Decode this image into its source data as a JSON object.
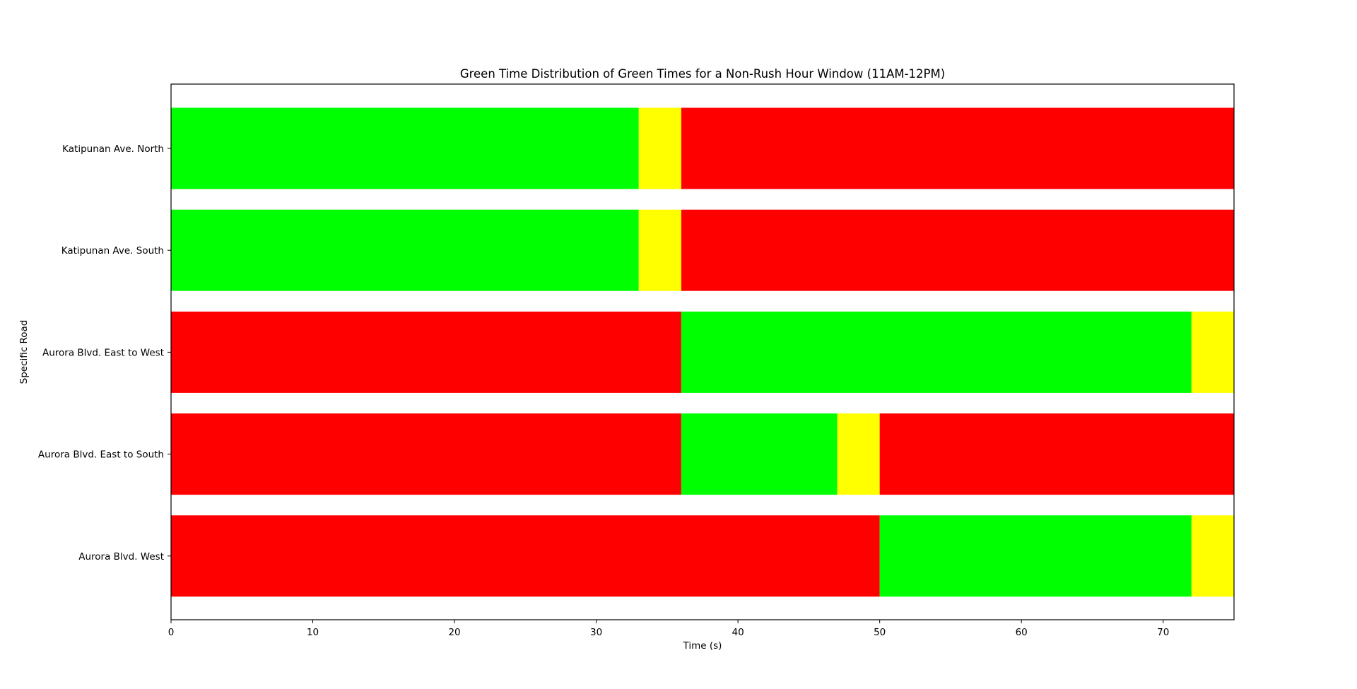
{
  "chart_data": {
    "type": "bar",
    "orientation": "horizontal",
    "stacked": true,
    "title": "Green Time Distribution of Green Times for a Non-Rush Hour Window (11AM-12PM)",
    "xlabel": "Time (s)",
    "ylabel": "Specific Road",
    "xlim": [
      0,
      75
    ],
    "xticks": [
      0,
      10,
      20,
      30,
      40,
      50,
      60,
      70
    ],
    "grid": false,
    "colors": {
      "green": "#00ff00",
      "yellow": "#ffff00",
      "red": "#ff0000"
    },
    "categories": [
      "Katipunan Ave. North",
      "Katipunan Ave. South",
      "Aurora Blvd. East to West",
      "Aurora Blvd. East to South",
      "Aurora Blvd. West"
    ],
    "bars": [
      {
        "road": "Katipunan Ave. North",
        "segments": [
          {
            "state": "green",
            "start": 0,
            "end": 33
          },
          {
            "state": "yellow",
            "start": 33,
            "end": 36
          },
          {
            "state": "red",
            "start": 36,
            "end": 75
          }
        ]
      },
      {
        "road": "Katipunan Ave. South",
        "segments": [
          {
            "state": "green",
            "start": 0,
            "end": 33
          },
          {
            "state": "yellow",
            "start": 33,
            "end": 36
          },
          {
            "state": "red",
            "start": 36,
            "end": 75
          }
        ]
      },
      {
        "road": "Aurora Blvd. East to West",
        "segments": [
          {
            "state": "red",
            "start": 0,
            "end": 36
          },
          {
            "state": "green",
            "start": 36,
            "end": 72
          },
          {
            "state": "yellow",
            "start": 72,
            "end": 75
          }
        ]
      },
      {
        "road": "Aurora Blvd. East to South",
        "segments": [
          {
            "state": "red",
            "start": 0,
            "end": 36
          },
          {
            "state": "green",
            "start": 36,
            "end": 47
          },
          {
            "state": "yellow",
            "start": 47,
            "end": 50
          },
          {
            "state": "red",
            "start": 50,
            "end": 75
          }
        ]
      },
      {
        "road": "Aurora Blvd. West",
        "segments": [
          {
            "state": "red",
            "start": 0,
            "end": 50
          },
          {
            "state": "green",
            "start": 50,
            "end": 72
          },
          {
            "state": "yellow",
            "start": 72,
            "end": 75
          }
        ]
      }
    ]
  }
}
